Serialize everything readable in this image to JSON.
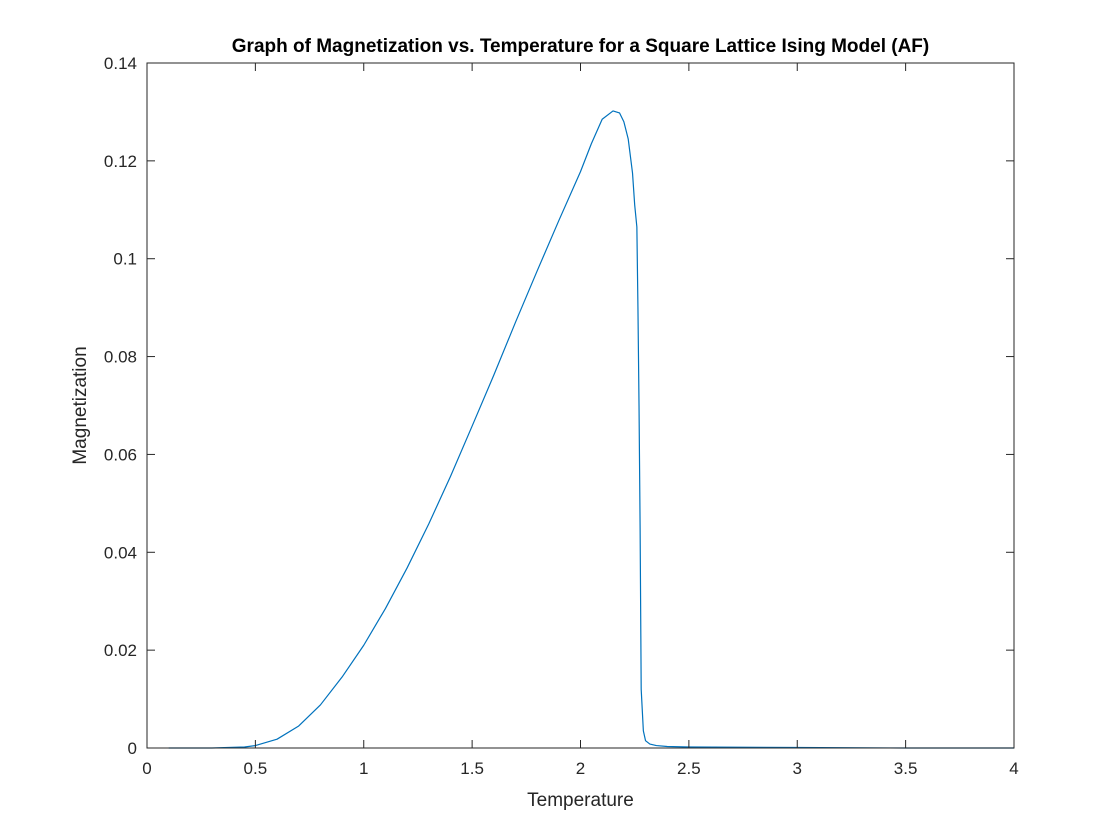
{
  "chart_data": {
    "type": "line",
    "title": "Graph of Magnetization vs. Temperature for a Square Lattice Ising Model (AF)",
    "xlabel": "Temperature",
    "ylabel": "Magnetization",
    "xlim": [
      0,
      4
    ],
    "ylim": [
      0,
      0.14
    ],
    "xticks": [
      0,
      0.5,
      1,
      1.5,
      2,
      2.5,
      3,
      3.5,
      4
    ],
    "xtick_labels": [
      "0",
      "0.5",
      "1",
      "1.5",
      "2",
      "2.5",
      "3",
      "3.5",
      "4"
    ],
    "yticks": [
      0,
      0.02,
      0.04,
      0.06,
      0.08,
      0.1,
      0.12,
      0.14
    ],
    "ytick_labels": [
      "0",
      "0.02",
      "0.04",
      "0.06",
      "0.08",
      "0.1",
      "0.12",
      "0.14"
    ],
    "grid": false,
    "box": true,
    "series": [
      {
        "color": "#0072BD",
        "x": [
          0.1,
          0.3,
          0.45,
          0.5,
          0.6,
          0.7,
          0.8,
          0.9,
          1.0,
          1.1,
          1.2,
          1.3,
          1.4,
          1.5,
          1.6,
          1.7,
          1.8,
          1.9,
          2.0,
          2.05,
          2.1,
          2.15,
          2.18,
          2.2,
          2.22,
          2.24,
          2.25,
          2.26,
          2.265,
          2.27,
          2.275,
          2.28,
          2.29,
          2.3,
          2.32,
          2.35,
          2.4,
          2.5,
          3.0,
          3.5,
          4.0
        ],
        "y": [
          0.0,
          0.0,
          0.0002,
          0.0005,
          0.0018,
          0.0045,
          0.0088,
          0.0145,
          0.021,
          0.0285,
          0.0368,
          0.0458,
          0.0555,
          0.0658,
          0.0762,
          0.087,
          0.0975,
          0.1078,
          0.1178,
          0.1235,
          0.1285,
          0.1302,
          0.1298,
          0.128,
          0.1245,
          0.1175,
          0.111,
          0.1065,
          0.09,
          0.07,
          0.045,
          0.012,
          0.0035,
          0.0015,
          0.0008,
          0.0005,
          0.0003,
          0.0002,
          0.0001,
          0.0,
          0.0
        ]
      }
    ]
  }
}
